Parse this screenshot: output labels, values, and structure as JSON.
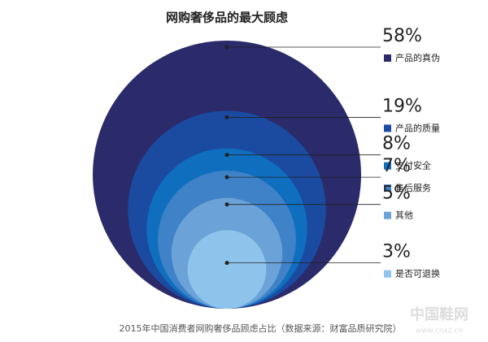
{
  "chart_data": {
    "type": "circles",
    "title": "网购奢侈品的最大顾虑",
    "categories": [
      "产品的真伪",
      "产品的质量",
      "支付安全",
      "售后服务",
      "其他",
      "是否可退换"
    ],
    "values": [
      58,
      19,
      8,
      7,
      5,
      3
    ],
    "value_labels": [
      "58%",
      "19%",
      "8%",
      "7%",
      "5%",
      "3%"
    ],
    "colors": [
      "#2b2a6b",
      "#1a4ba0",
      "#0f6fbe",
      "#3f82c8",
      "#6ba3d8",
      "#8ec4ec"
    ],
    "footnote": "2015年中国消费者网购奢侈品顾虑占比（数据来源：财富品质研究院）",
    "watermark": "中国鞋网",
    "watermark_url": "www.cnxz.cn"
  }
}
